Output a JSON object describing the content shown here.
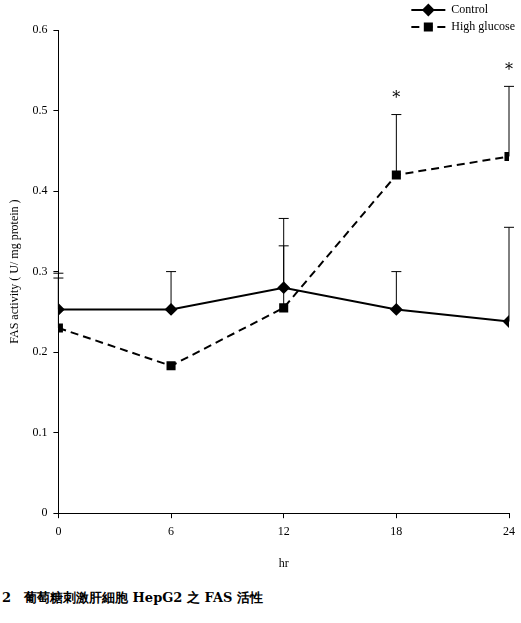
{
  "chart_data": {
    "type": "line",
    "x_label": "hr",
    "y_label": "FAS activity ( U/ mg protein )",
    "caption": "2　葡萄糖刺激肝細胞 HepG2 之 FAS 活性",
    "x": [
      0,
      6,
      12,
      18,
      24
    ],
    "xlim": [
      0,
      24
    ],
    "xticks": [
      0,
      6,
      12,
      18,
      24
    ],
    "ylim": [
      0,
      0.6
    ],
    "yticks": [
      0,
      0.1,
      0.2,
      0.3,
      0.4,
      0.5,
      0.6
    ],
    "grid": false,
    "legend": "top-right",
    "series": [
      {
        "name": "Control",
        "color": "#000000",
        "marker": "diamond",
        "line_style": "solid",
        "values": [
          0.253,
          0.253,
          0.28,
          0.253,
          0.238
        ],
        "error": [
          0.045,
          0.047,
          0.086,
          0.047,
          0.117
        ]
      },
      {
        "name": "High glucose",
        "color": "#000000",
        "marker": "square",
        "line_style": "dashed",
        "values": [
          0.23,
          0.183,
          0.255,
          0.42,
          0.443
        ],
        "error": [
          0.062,
          0,
          0.077,
          0.075,
          0.087
        ]
      }
    ],
    "annotations": [
      {
        "x": 18,
        "text": "*"
      },
      {
        "x": 24,
        "text": "*"
      }
    ]
  }
}
